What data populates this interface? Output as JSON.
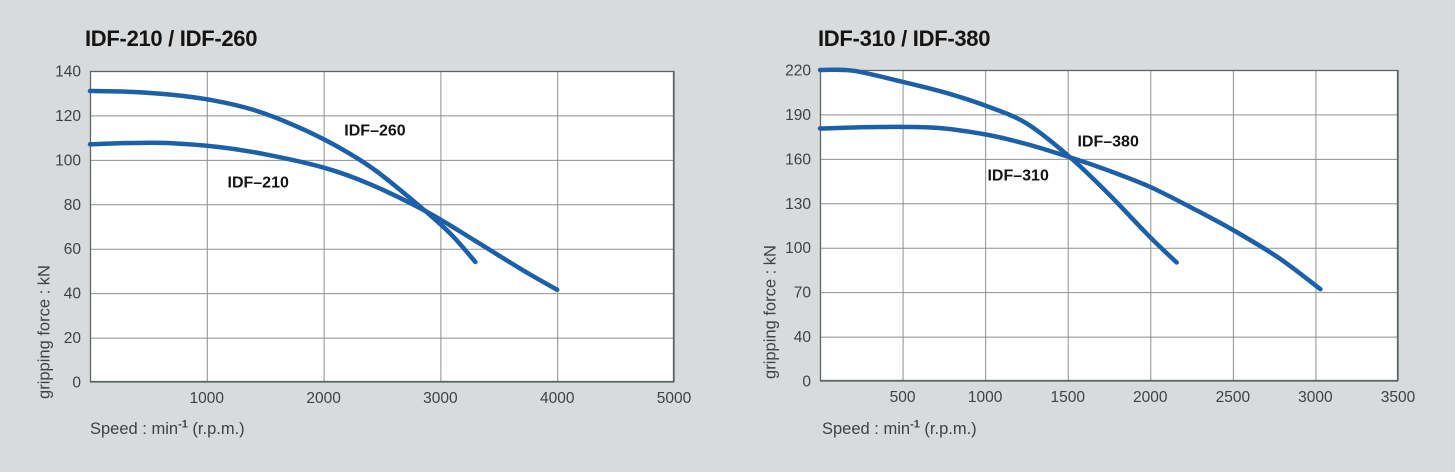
{
  "page": {
    "background": "#d9dadb",
    "plot_background": "#ffffff",
    "grid_color": "#8c9091",
    "border_color": "#5f6466",
    "tick_text_color": "#3e4244",
    "curve_color": "#1e60a8"
  },
  "charts": [
    {
      "title": "IDF-210 / IDF-260",
      "ylabel": "gripping force : kN",
      "xlabel_parts": {
        "pre": "Speed : min",
        "sup": "-1",
        "post": " (r.p.m.)"
      },
      "chart_data": {
        "type": "line",
        "title": "IDF-210 / IDF-260",
        "xlabel": "Speed : min-1 (r.p.m.)",
        "ylabel": "gripping force : kN",
        "xlim": [
          0,
          5000
        ],
        "x_ticks": [
          1000,
          2000,
          3000,
          4000,
          5000
        ],
        "y_ticks": [
          140,
          120,
          100,
          80,
          60,
          40,
          20,
          0
        ],
        "grid": true,
        "legend": "inline-curve-labels",
        "line_color": "#1e60a8",
        "series": [
          {
            "name": "IDF–210",
            "label_pos": {
              "x": 1440,
              "y": 90
            },
            "points": [
              [
                0,
                107
              ],
              [
                350,
                107.6
              ],
              [
                700,
                107.5
              ],
              [
                1100,
                105.8
              ],
              [
                1500,
                102.5
              ],
              [
                2000,
                96.5
              ],
              [
                2400,
                89
              ],
              [
                2870,
                77
              ],
              [
                3300,
                63.5
              ],
              [
                3700,
                50.5
              ],
              [
                4000,
                41.5
              ]
            ]
          },
          {
            "name": "IDF–260",
            "label_pos": {
              "x": 2440,
              "y": 113.5
            },
            "points": [
              [
                0,
                131
              ],
              [
                350,
                130.6
              ],
              [
                700,
                129.3
              ],
              [
                1050,
                126.8
              ],
              [
                1400,
                122.5
              ],
              [
                1750,
                115.5
              ],
              [
                2100,
                106.5
              ],
              [
                2450,
                95
              ],
              [
                2870,
                77
              ],
              [
                3100,
                66
              ],
              [
                3300,
                54
              ]
            ]
          }
        ]
      }
    },
    {
      "title": "IDF-310 / IDF-380",
      "ylabel": "gripping force : kN",
      "xlabel_parts": {
        "pre": "Speed : min",
        "sup": "-1",
        "post": " (r.p.m.)"
      },
      "chart_data": {
        "type": "line",
        "title": "IDF-310 / IDF-380",
        "xlabel": "Speed : min-1 (r.p.m.)",
        "ylabel": "gripping force : kN",
        "xlim": [
          0,
          3500
        ],
        "x_ticks": [
          500,
          1000,
          1500,
          2000,
          2500,
          3000,
          3500
        ],
        "y_ticks": [
          220,
          190,
          160,
          130,
          100,
          70,
          40,
          0
        ],
        "grid": true,
        "legend": "inline-curve-labels",
        "line_color": "#1e60a8",
        "series": [
          {
            "name": "IDF–310",
            "label_pos": {
              "x": 1200,
              "y": 149
            },
            "points": [
              [
                0,
                180.5
              ],
              [
                350,
                181.5
              ],
              [
                700,
                181
              ],
              [
                1000,
                176.5
              ],
              [
                1250,
                170
              ],
              [
                1515,
                161
              ],
              [
                1750,
                152
              ],
              [
                2000,
                141
              ],
              [
                2250,
                127
              ],
              [
                2500,
                112
              ],
              [
                2780,
                93
              ],
              [
                3030,
                72
              ]
            ]
          },
          {
            "name": "IDF–380",
            "label_pos": {
              "x": 1745,
              "y": 172
            },
            "points": [
              [
                0,
                220
              ],
              [
                200,
                219.5
              ],
              [
                500,
                212
              ],
              [
                750,
                205
              ],
              [
                1000,
                196
              ],
              [
                1250,
                184
              ],
              [
                1515,
                161
              ],
              [
                1750,
                136
              ],
              [
                2000,
                107
              ],
              [
                2160,
                90
              ]
            ]
          }
        ]
      }
    }
  ]
}
